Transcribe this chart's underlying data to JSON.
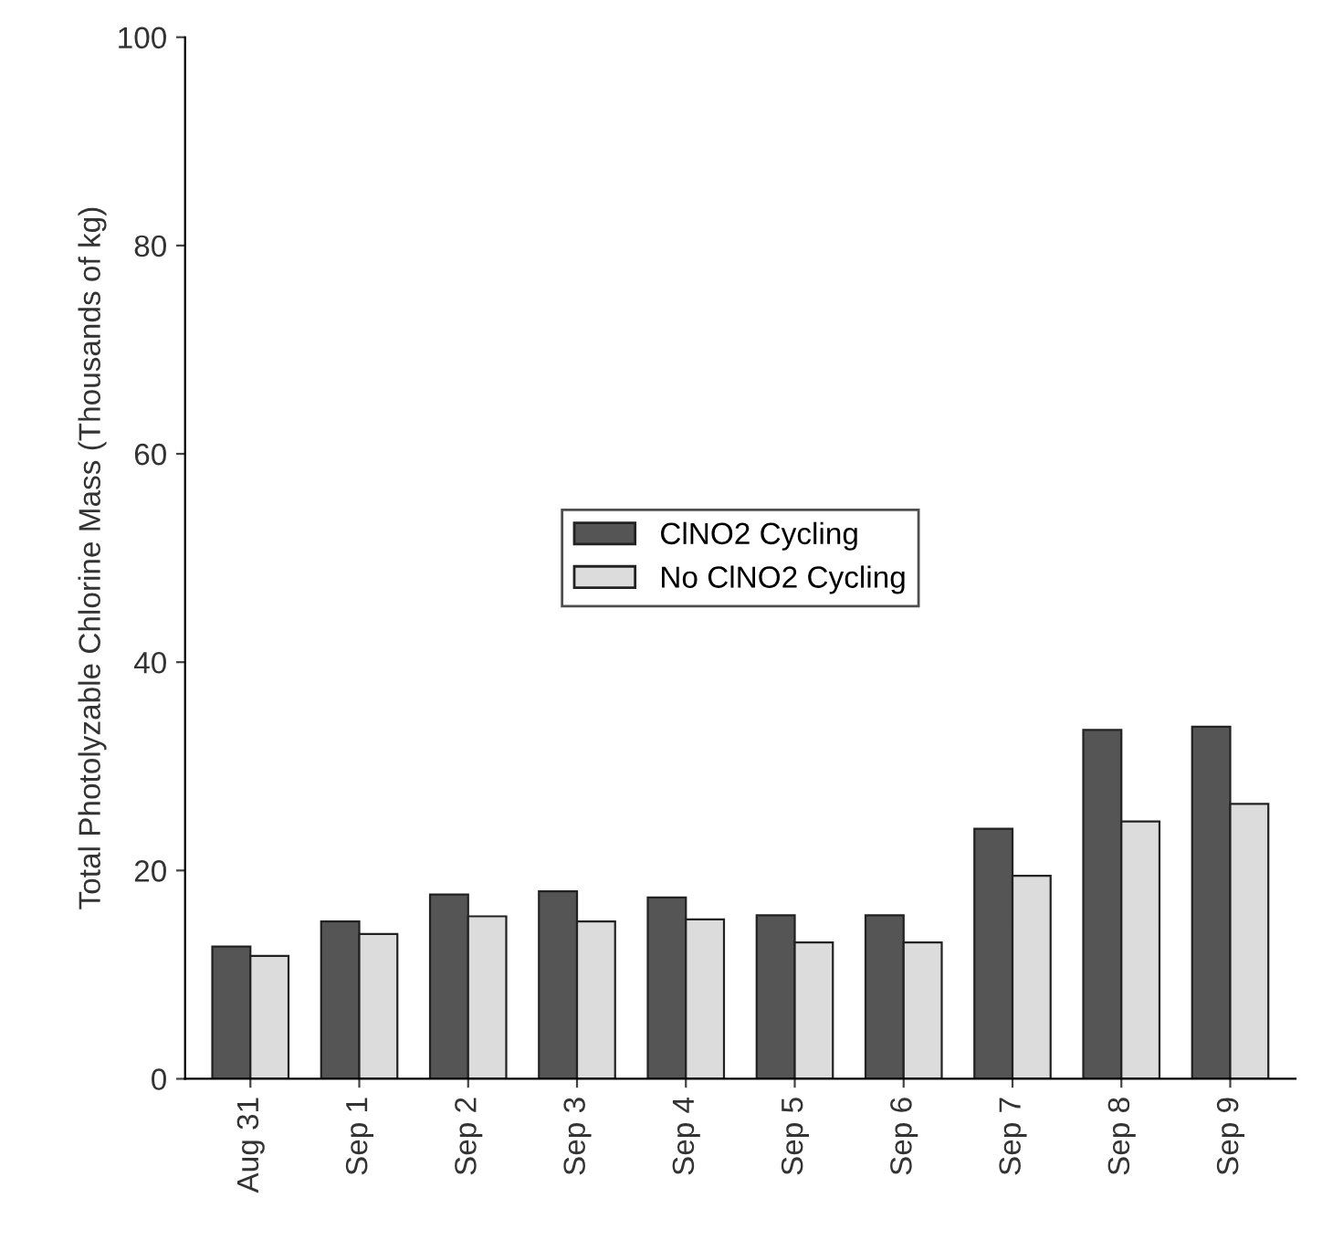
{
  "chart_data": {
    "type": "bar",
    "ylabel": "Total Photolyzable Chlorine Mass (Thousands of kg)",
    "categories": [
      "Aug 31",
      "Sep 1",
      "Sep 2",
      "Sep 3",
      "Sep 4",
      "Sep 5",
      "Sep 6",
      "Sep 7",
      "Sep 8",
      "Sep 9"
    ],
    "series": [
      {
        "name": "ClNO2 Cycling",
        "color": "#555555",
        "values": [
          12.7,
          15.1,
          17.7,
          18.0,
          17.4,
          15.7,
          15.7,
          24.0,
          33.5,
          33.8
        ]
      },
      {
        "name": "No ClNO2 Cycling",
        "color": "#dcdcdc",
        "values": [
          11.8,
          13.9,
          15.6,
          15.1,
          15.3,
          13.1,
          13.1,
          19.5,
          24.7,
          26.4
        ]
      }
    ],
    "ylim": [
      0,
      100
    ],
    "yticks": [
      0,
      20,
      40,
      60,
      80,
      100
    ],
    "grid": false,
    "legend": "center"
  }
}
